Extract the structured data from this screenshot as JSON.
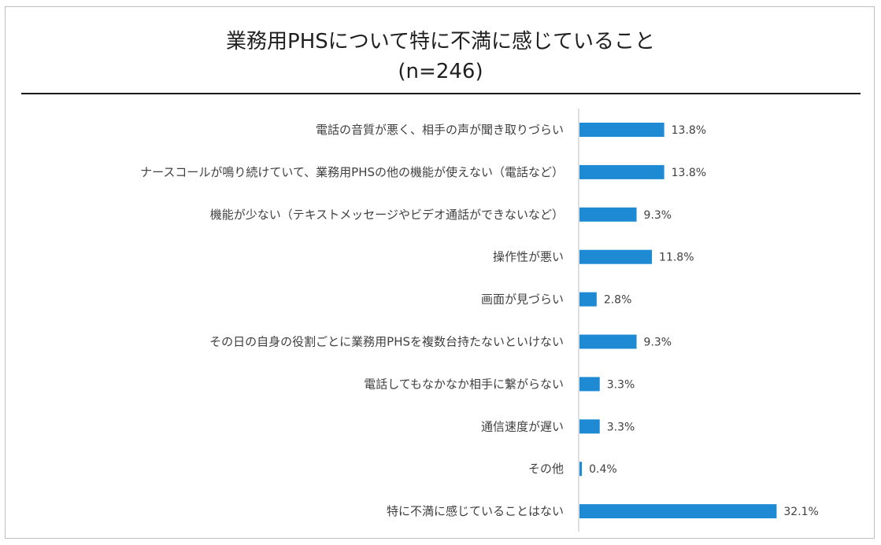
{
  "chart_data": {
    "type": "bar",
    "orientation": "horizontal",
    "title": "業務用PHSについて特に不満に感じていること",
    "subtitle": "(n=246)",
    "categories": [
      "電話の音質が悪く、相手の声が聞き取りづらい",
      "ナースコールが鳴り続けていて、業務用PHSの他の機能が使えない（電話など）",
      "機能が少ない（テキストメッセージやビデオ通話ができないなど）",
      "操作性が悪い",
      "画面が見づらい",
      "その日の自身の役割ごとに業務用PHSを複数台持たないといけない",
      "電話してもなかなか相手に繋がらない",
      "通信速度が遅い",
      "その他",
      "特に不満に感じていることはない"
    ],
    "values": [
      13.8,
      13.8,
      9.3,
      11.8,
      2.8,
      9.3,
      3.3,
      3.3,
      0.4,
      32.1
    ],
    "value_labels": [
      "13.8%",
      "13.8%",
      "9.3%",
      "11.8%",
      "2.8%",
      "9.3%",
      "3.3%",
      "3.3%",
      "0.4%",
      "32.1%"
    ],
    "unit": "%",
    "xlim": [
      0,
      40
    ],
    "grid": false,
    "legend": "none",
    "bar_color": "#1f8ad4",
    "axis_color": "#bfbfbf"
  }
}
